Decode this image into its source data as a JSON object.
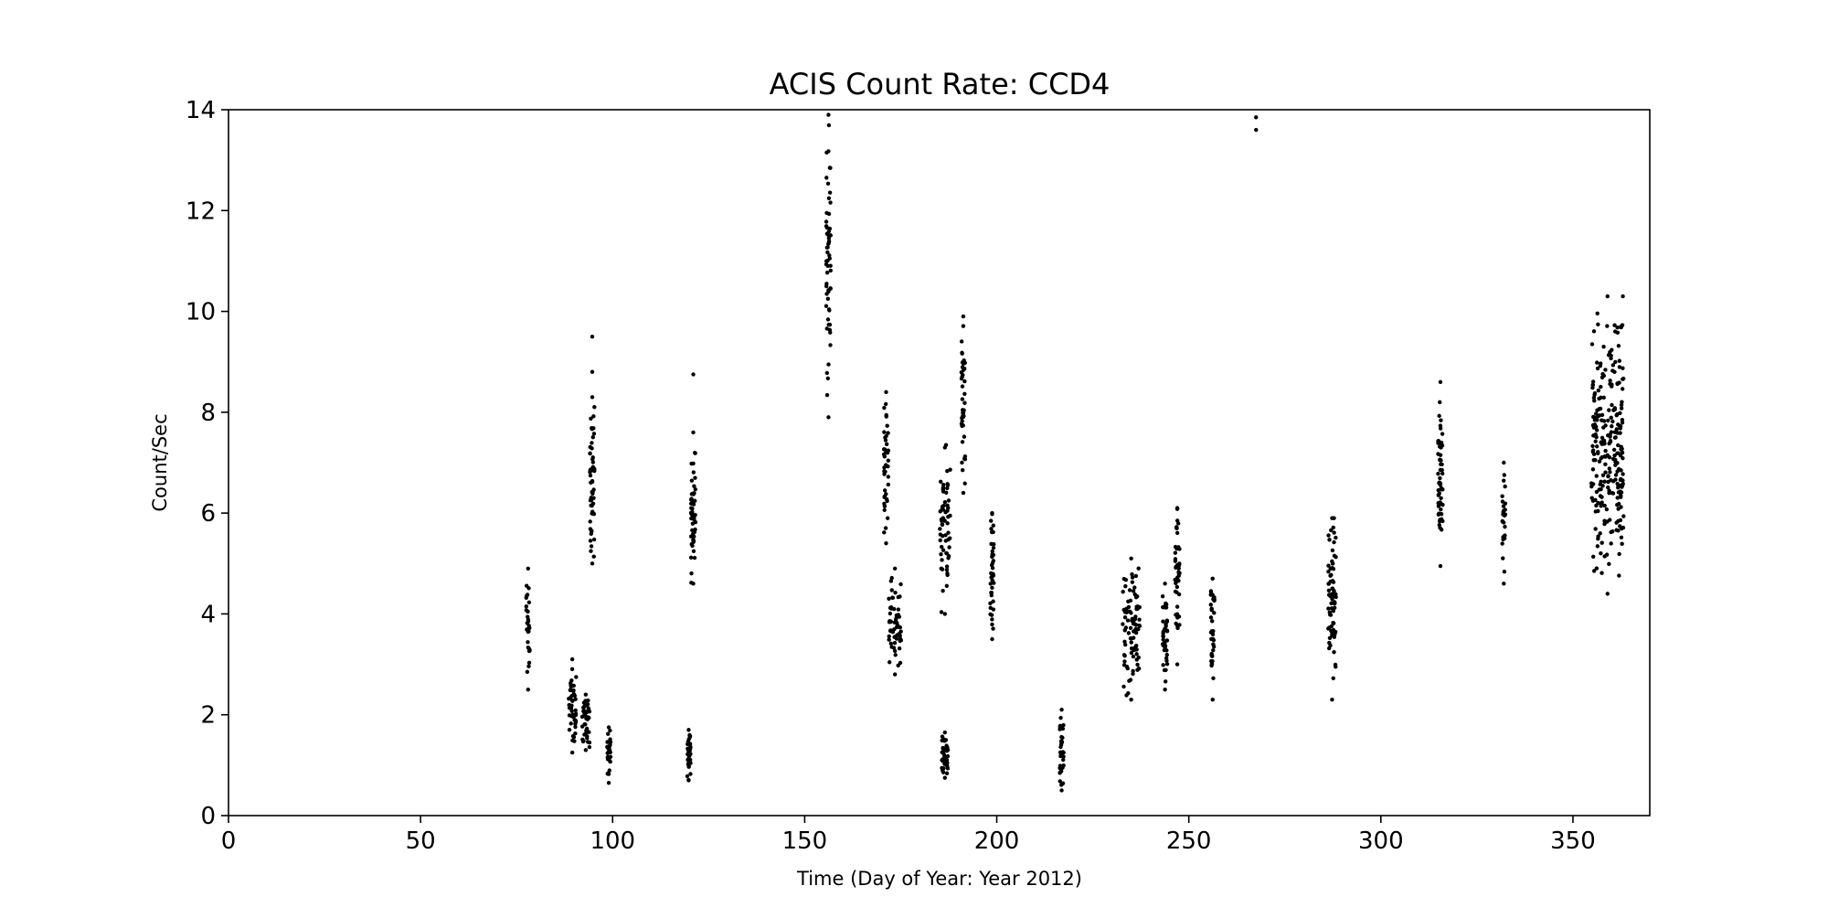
{
  "chart_data": {
    "type": "scatter",
    "title": "ACIS Count Rate: CCD4",
    "xlabel": "Time (Day of Year: Year 2012)",
    "ylabel": "Count/Sec",
    "xlim": [
      0,
      370
    ],
    "ylim": [
      0,
      14
    ],
    "xticks": [
      0,
      50,
      100,
      150,
      200,
      250,
      300,
      350
    ],
    "yticks": [
      0,
      2,
      4,
      6,
      8,
      10,
      12,
      14
    ],
    "grid": false,
    "marker_color": "#000000",
    "clusters": [
      {
        "x": 78.0,
        "xspread": 0.5,
        "ymin": 2.5,
        "ymax": 4.9,
        "n": 30
      },
      {
        "x": 89.5,
        "xspread": 1.0,
        "ymin": 1.25,
        "ymax": 3.1,
        "n": 45
      },
      {
        "x": 93.0,
        "xspread": 1.0,
        "ymin": 1.3,
        "ymax": 2.4,
        "n": 40
      },
      {
        "x": 94.7,
        "xspread": 0.6,
        "ymin": 5.0,
        "ymax": 8.3,
        "n": 55
      },
      {
        "x": 99.0,
        "xspread": 0.5,
        "ymin": 0.65,
        "ymax": 1.75,
        "n": 30
      },
      {
        "x": 119.8,
        "xspread": 0.5,
        "ymin": 0.7,
        "ymax": 1.7,
        "n": 35
      },
      {
        "x": 121.0,
        "xspread": 0.6,
        "ymin": 4.6,
        "ymax": 7.6,
        "n": 50
      },
      {
        "x": 156.2,
        "xspread": 0.6,
        "ymin": 7.9,
        "ymax": 13.9,
        "n": 60
      },
      {
        "x": 171.2,
        "xspread": 0.6,
        "ymin": 5.4,
        "ymax": 8.4,
        "n": 40
      },
      {
        "x": 173.5,
        "xspread": 1.6,
        "ymin": 2.8,
        "ymax": 4.9,
        "n": 60
      },
      {
        "x": 186.5,
        "xspread": 1.4,
        "ymin": 4.0,
        "ymax": 7.3,
        "n": 60
      },
      {
        "x": 186.5,
        "xspread": 0.8,
        "ymin": 0.75,
        "ymax": 1.65,
        "n": 35
      },
      {
        "x": 191.3,
        "xspread": 0.5,
        "ymin": 6.4,
        "ymax": 9.9,
        "n": 40
      },
      {
        "x": 198.8,
        "xspread": 0.5,
        "ymin": 3.5,
        "ymax": 6.0,
        "n": 40
      },
      {
        "x": 216.9,
        "xspread": 0.5,
        "ymin": 0.5,
        "ymax": 2.1,
        "n": 35
      },
      {
        "x": 235.0,
        "xspread": 2.2,
        "ymin": 2.3,
        "ymax": 5.1,
        "n": 90
      },
      {
        "x": 243.8,
        "xspread": 0.6,
        "ymin": 2.5,
        "ymax": 4.6,
        "n": 40
      },
      {
        "x": 247.0,
        "xspread": 0.6,
        "ymin": 3.0,
        "ymax": 6.1,
        "n": 45
      },
      {
        "x": 256.2,
        "xspread": 0.5,
        "ymin": 2.3,
        "ymax": 4.7,
        "n": 35
      },
      {
        "x": 287.3,
        "xspread": 1.0,
        "ymin": 2.3,
        "ymax": 5.9,
        "n": 70
      },
      {
        "x": 315.5,
        "xspread": 0.6,
        "ymin": 4.95,
        "ymax": 8.6,
        "n": 55
      },
      {
        "x": 332.0,
        "xspread": 0.4,
        "ymin": 4.6,
        "ymax": 7.0,
        "n": 25
      },
      {
        "x": 359.0,
        "xspread": 4.2,
        "ymin": 4.4,
        "ymax": 10.3,
        "n": 260
      }
    ],
    "points": [
      {
        "x": 267.5,
        "y": 13.85
      },
      {
        "x": 267.5,
        "y": 13.6
      },
      {
        "x": 94.7,
        "y": 9.5
      },
      {
        "x": 94.7,
        "y": 8.8
      },
      {
        "x": 121.0,
        "y": 8.75
      },
      {
        "x": 363.0,
        "y": 10.3
      },
      {
        "x": 362.5,
        "y": 9.7
      },
      {
        "x": 361.0,
        "y": 9.6
      },
      {
        "x": 355.0,
        "y": 9.35
      },
      {
        "x": 358.0,
        "y": 9.3
      },
      {
        "x": 186.8,
        "y": 7.35
      },
      {
        "x": 198.8,
        "y": 5.98
      },
      {
        "x": 247.0,
        "y": 6.08
      },
      {
        "x": 287.8,
        "y": 5.9
      }
    ]
  }
}
